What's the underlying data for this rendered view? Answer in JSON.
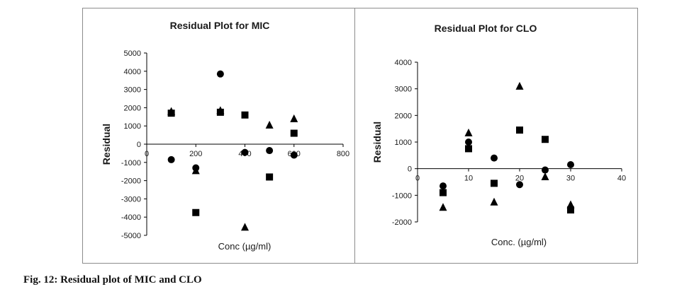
{
  "caption": "Fig. 12: Residual plot of MIC and CLO",
  "colors": {
    "marker": "#000000",
    "axis": "#000000",
    "frame": "#8c8c8c"
  },
  "chart_data": [
    {
      "type": "scatter",
      "title": "Residual Plot for MIC",
      "xlabel": "Conc (µg/ml)",
      "ylabel": "Residual",
      "xlim": [
        0,
        800
      ],
      "ylim": [
        -5000,
        5000
      ],
      "x_ticks": [
        0,
        200,
        400,
        600,
        800
      ],
      "y_ticks": [
        5000,
        4000,
        3000,
        2000,
        1000,
        0,
        -1000,
        -2000,
        -3000,
        -4000,
        -5000
      ],
      "legend": "none",
      "series": [
        {
          "name": "circle",
          "marker": "circle",
          "x": [
            100,
            200,
            300,
            400,
            500,
            600
          ],
          "y": [
            -850,
            -1300,
            3850,
            -450,
            -350,
            -600
          ]
        },
        {
          "name": "square",
          "marker": "square",
          "x": [
            100,
            200,
            300,
            400,
            500,
            600
          ],
          "y": [
            1700,
            -3750,
            1750,
            1600,
            -1800,
            600
          ]
        },
        {
          "name": "triangle",
          "marker": "triangle",
          "x": [
            100,
            200,
            300,
            400,
            500,
            600
          ],
          "y": [
            1800,
            -1450,
            1850,
            -4550,
            1050,
            1400
          ]
        }
      ]
    },
    {
      "type": "scatter",
      "title": "Residual Plot for CLO",
      "xlabel": "Conc. (µg/ml)",
      "ylabel": "Residual",
      "xlim": [
        0,
        40
      ],
      "ylim": [
        -2000,
        4000
      ],
      "x_ticks": [
        0,
        10,
        20,
        30,
        40
      ],
      "y_ticks": [
        4000,
        3000,
        2000,
        1000,
        0,
        -1000,
        -2000
      ],
      "legend": "none",
      "series": [
        {
          "name": "circle",
          "marker": "circle",
          "x": [
            5,
            10,
            15,
            20,
            25,
            30
          ],
          "y": [
            -650,
            1000,
            400,
            -600,
            -50,
            150
          ]
        },
        {
          "name": "square",
          "marker": "square",
          "x": [
            5,
            10,
            15,
            20,
            25,
            30
          ],
          "y": [
            -900,
            750,
            -550,
            1450,
            1100,
            -1550
          ]
        },
        {
          "name": "triangle",
          "marker": "triangle",
          "x": [
            5,
            10,
            15,
            20,
            25,
            30
          ],
          "y": [
            -1450,
            1350,
            -1250,
            3100,
            -300,
            -1350
          ]
        }
      ]
    }
  ]
}
